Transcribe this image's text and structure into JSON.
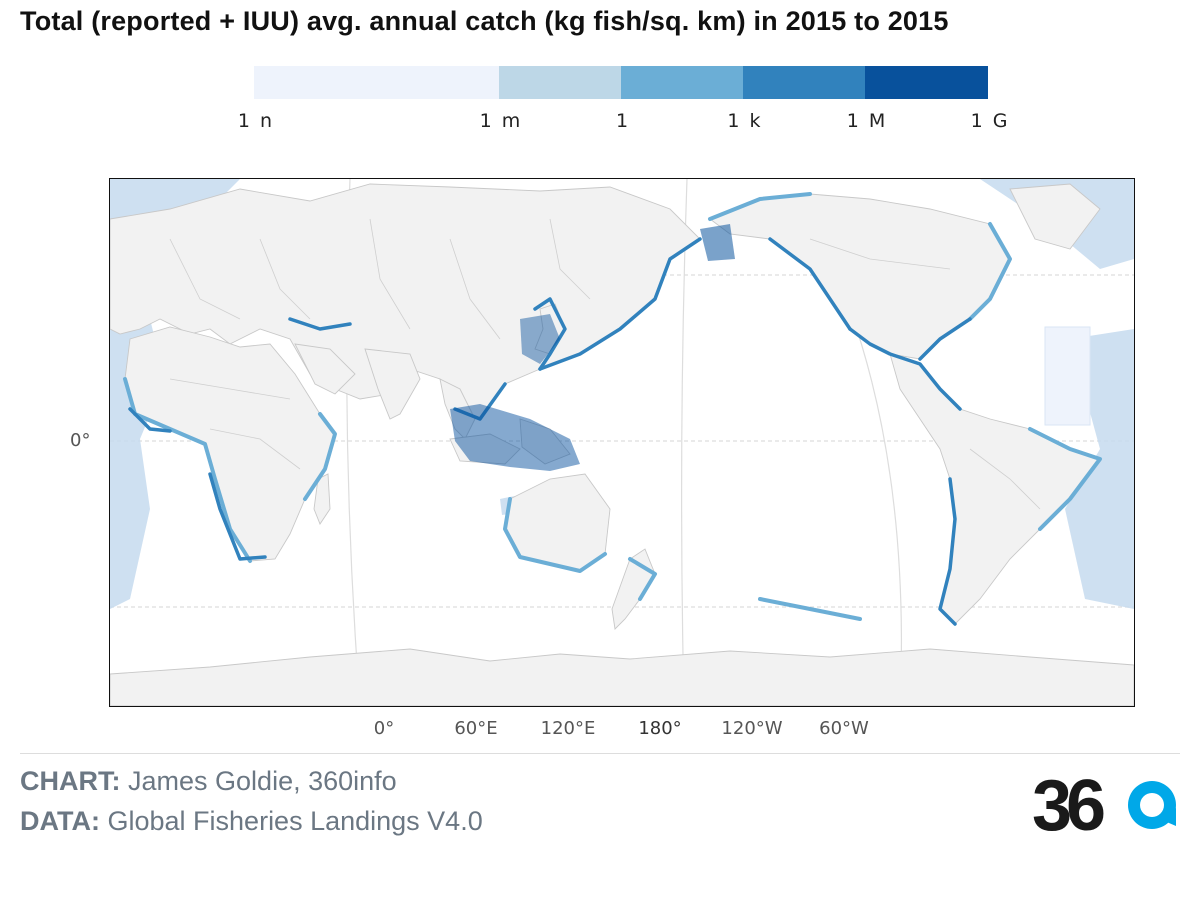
{
  "title": "Total (reported + IUU) avg. annual catch (kg fish/sq. km) in 2015 to 2015",
  "legend": {
    "tick_labels": [
      "1 n",
      "1 m",
      "1",
      "1 k",
      "1 M",
      "1 G"
    ],
    "tick_values": [
      1e-09,
      0.001,
      1,
      1000.0,
      1000000.0,
      1000000000.0
    ],
    "bins": [
      {
        "from": 1e-09,
        "to": 0.001,
        "color": "#eef3fc"
      },
      {
        "from": 0.001,
        "to": 1,
        "color": "#bdd7e7"
      },
      {
        "from": 1,
        "to": 1000.0,
        "color": "#6baed6"
      },
      {
        "from": 1000.0,
        "to": 1000000.0,
        "color": "#3182bd"
      },
      {
        "from": 1000000.0,
        "to": 1000000000.0,
        "color": "#08519c"
      }
    ]
  },
  "map": {
    "projection": "pacific-centered",
    "lat_label": "0°",
    "lon_labels": [
      {
        "text": "0°",
        "lon": 0,
        "bold": false
      },
      {
        "text": "60°E",
        "lon": 60,
        "bold": false
      },
      {
        "text": "120°E",
        "lon": 120,
        "bold": false
      },
      {
        "text": "180°",
        "lon": 180,
        "bold": true
      },
      {
        "text": "120°W",
        "lon": -120,
        "bold": false
      },
      {
        "text": "60°W",
        "lon": -60,
        "bold": false
      }
    ],
    "colors": {
      "land": "#f2f2f2",
      "border": "#c8c8c8",
      "graticule": "#dddddd",
      "frame": "#111111"
    }
  },
  "credits": {
    "chart_label": "CHART:",
    "chart_value": "James Goldie, 360info",
    "data_label": "DATA:",
    "data_value": "Global Fisheries Landings V4.0"
  },
  "logo": {
    "text": "360",
    "accent": "#00a8e8",
    "dark": "#1a1a1a"
  }
}
